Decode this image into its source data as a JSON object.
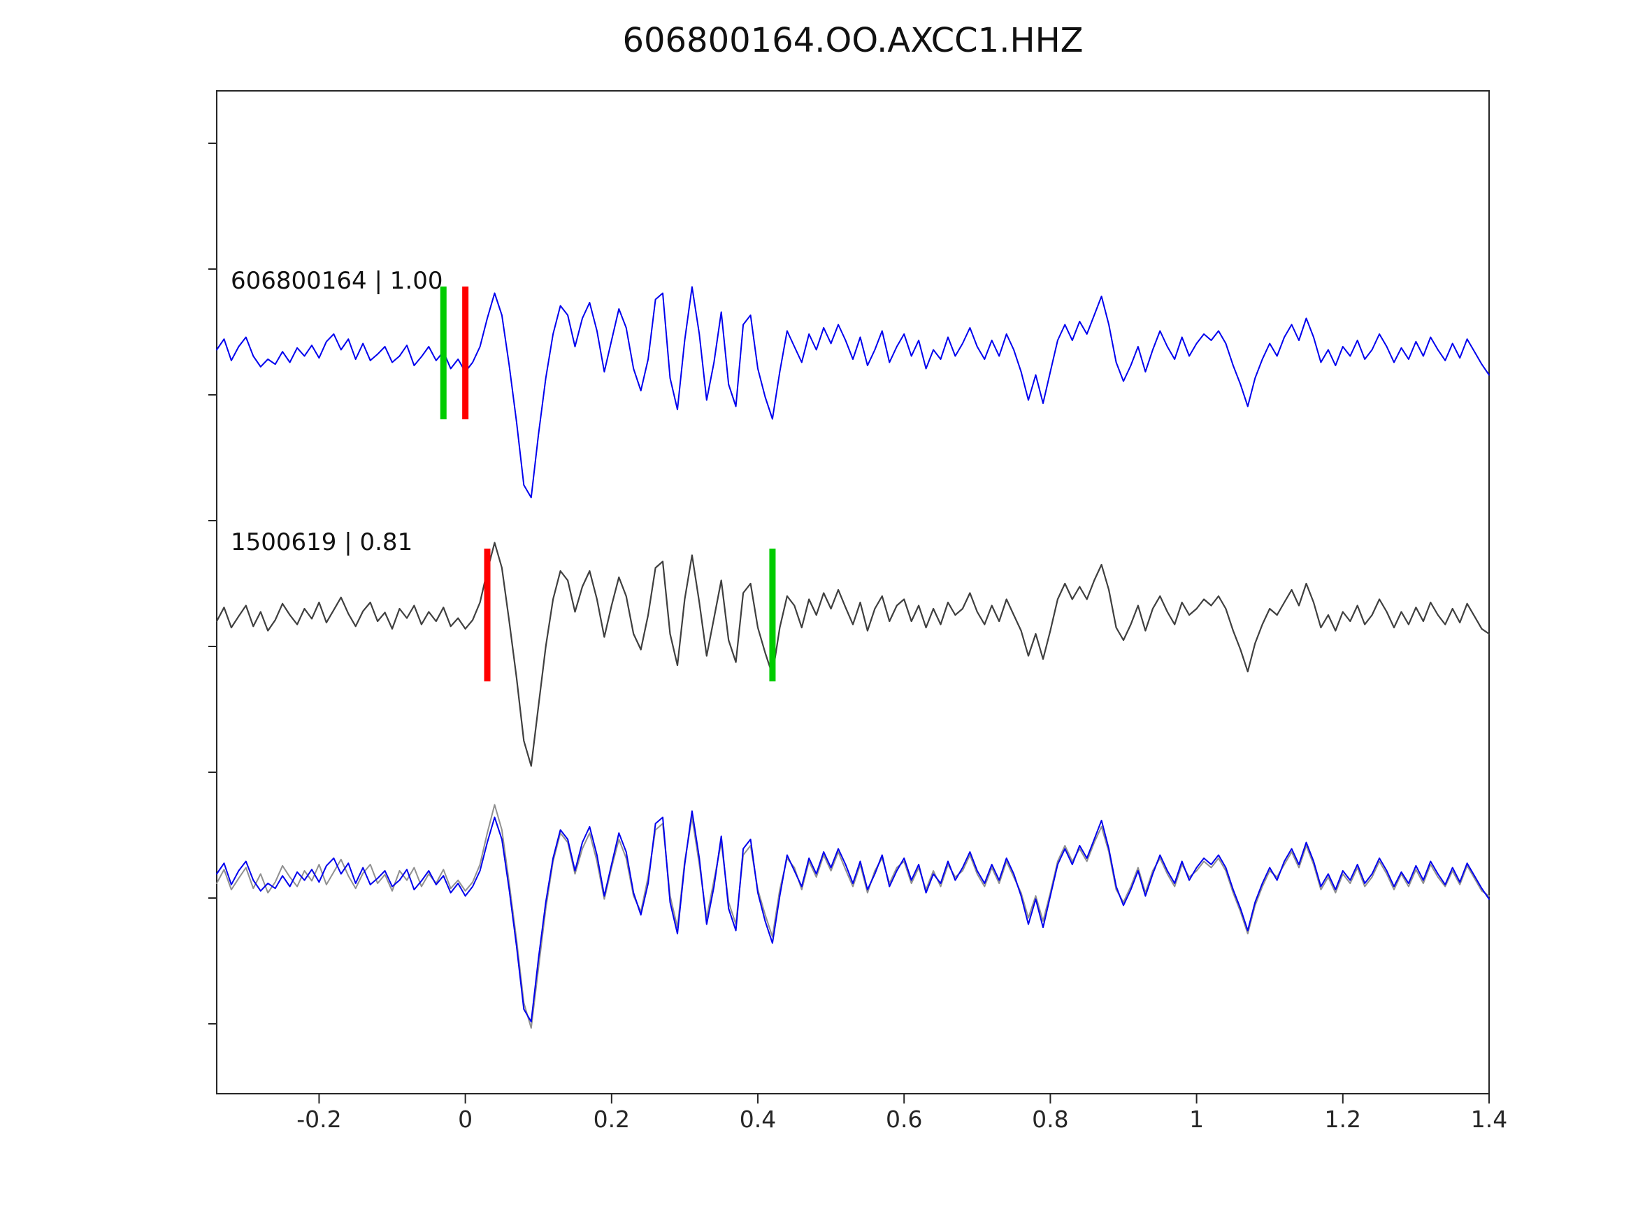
{
  "title": "606800164.OO.AXCC1.HHZ",
  "chart_data": {
    "type": "line",
    "title": "606800164.OO.AXCC1.HHZ",
    "xlabel": "",
    "ylabel": "",
    "grid": false,
    "legend": "none",
    "xlim": [
      -0.34,
      1.4
    ],
    "x_ticks": [
      -0.2,
      0,
      0.2,
      0.4,
      0.6,
      0.8,
      1,
      1.2,
      1.4
    ],
    "x_tick_labels": [
      "-0.2",
      "0",
      "0.2",
      "0.4",
      "0.6",
      "0.8",
      "1",
      "1.2",
      "1.4"
    ],
    "x_start": -0.34,
    "x_step": 0.01,
    "axis_color": "#262626",
    "traces": [
      {
        "name": "template",
        "label": "606800164 | 1.00",
        "color": "#0000ee",
        "width": 2,
        "markers": [
          {
            "x": -0.03,
            "color": "#00cc00",
            "name": "template-green-pick-marker"
          },
          {
            "x": 0.0,
            "color": "#ff0000",
            "name": "template-red-pick-marker"
          }
        ],
        "values": [
          0.05,
          0.22,
          -0.12,
          0.1,
          0.25,
          -0.05,
          -0.22,
          -0.1,
          -0.18,
          0.02,
          -0.15,
          0.08,
          -0.05,
          0.12,
          -0.08,
          0.18,
          0.3,
          0.05,
          0.22,
          -0.1,
          0.15,
          -0.12,
          -0.02,
          0.1,
          -0.15,
          -0.05,
          0.12,
          -0.2,
          -0.06,
          0.1,
          -0.12,
          0.02,
          -0.25,
          -0.1,
          -0.3,
          -0.15,
          0.1,
          0.55,
          0.95,
          0.6,
          -0.2,
          -1.1,
          -2.1,
          -2.3,
          -1.3,
          -0.4,
          0.3,
          0.75,
          0.6,
          0.1,
          0.55,
          0.8,
          0.35,
          -0.3,
          0.2,
          0.7,
          0.4,
          -0.25,
          -0.6,
          -0.1,
          0.85,
          0.95,
          -0.4,
          -0.9,
          0.2,
          1.05,
          0.3,
          -0.75,
          -0.15,
          0.65,
          -0.5,
          -0.85,
          0.45,
          0.6,
          -0.25,
          -0.7,
          -1.05,
          -0.3,
          0.35,
          0.1,
          -0.15,
          0.3,
          0.05,
          0.4,
          0.15,
          0.45,
          0.2,
          -0.1,
          0.25,
          -0.2,
          0.05,
          0.35,
          -0.15,
          0.1,
          0.3,
          -0.05,
          0.2,
          -0.25,
          0.05,
          -0.1,
          0.25,
          -0.05,
          0.15,
          0.4,
          0.1,
          -0.1,
          0.2,
          -0.05,
          0.3,
          0.05,
          -0.3,
          -0.75,
          -0.35,
          -0.8,
          -0.3,
          0.2,
          0.45,
          0.2,
          0.5,
          0.3,
          0.6,
          0.9,
          0.45,
          -0.15,
          -0.45,
          -0.2,
          0.1,
          -0.3,
          0.05,
          0.35,
          0.1,
          -0.1,
          0.25,
          -0.05,
          0.15,
          0.3,
          0.2,
          0.35,
          0.15,
          -0.2,
          -0.5,
          -0.85,
          -0.4,
          -0.1,
          0.15,
          -0.05,
          0.25,
          0.45,
          0.2,
          0.55,
          0.25,
          -0.15,
          0.05,
          -0.2,
          0.1,
          -0.05,
          0.2,
          -0.1,
          0.05,
          0.3,
          0.1,
          -0.15,
          0.08,
          -0.1,
          0.18,
          -0.05,
          0.25,
          0.05,
          -0.12,
          0.15,
          -0.08,
          0.22,
          0.02,
          -0.18,
          -0.35
        ]
      },
      {
        "name": "detection",
        "label": "1500619 | 0.81",
        "color": "#3f3f3f",
        "width": 2.2,
        "markers": [
          {
            "x": 0.03,
            "color": "#ff0000",
            "name": "detection-red-pick-marker"
          },
          {
            "x": 0.42,
            "color": "#00cc00",
            "name": "detection-green-pick-marker"
          }
        ],
        "values": [
          -0.1,
          0.12,
          -0.2,
          -0.02,
          0.15,
          -0.18,
          0.05,
          -0.25,
          -0.08,
          0.18,
          0.0,
          -0.15,
          0.1,
          -0.06,
          0.2,
          -0.12,
          0.08,
          0.28,
          0.02,
          -0.18,
          0.06,
          0.2,
          -0.1,
          0.04,
          -0.22,
          0.1,
          -0.05,
          0.15,
          -0.15,
          0.05,
          -0.1,
          0.12,
          -0.18,
          -0.05,
          -0.22,
          -0.08,
          0.2,
          0.7,
          1.15,
          0.75,
          -0.1,
          -1.0,
          -2.0,
          -2.4,
          -1.45,
          -0.5,
          0.25,
          0.7,
          0.55,
          0.05,
          0.45,
          0.7,
          0.25,
          -0.35,
          0.15,
          0.6,
          0.3,
          -0.3,
          -0.55,
          0.0,
          0.75,
          0.85,
          -0.3,
          -0.8,
          0.25,
          0.95,
          0.2,
          -0.65,
          -0.05,
          0.55,
          -0.4,
          -0.75,
          0.35,
          0.5,
          -0.2,
          -0.6,
          -0.95,
          -0.2,
          0.3,
          0.15,
          -0.2,
          0.25,
          0.0,
          0.35,
          0.1,
          0.4,
          0.12,
          -0.15,
          0.2,
          -0.25,
          0.1,
          0.3,
          -0.1,
          0.15,
          0.25,
          -0.1,
          0.15,
          -0.2,
          0.1,
          -0.15,
          0.2,
          0.0,
          0.1,
          0.35,
          0.05,
          -0.15,
          0.15,
          -0.1,
          0.25,
          0.0,
          -0.25,
          -0.65,
          -0.3,
          -0.7,
          -0.25,
          0.25,
          0.5,
          0.25,
          0.45,
          0.25,
          0.55,
          0.8,
          0.4,
          -0.2,
          -0.4,
          -0.15,
          0.15,
          -0.25,
          0.1,
          0.3,
          0.05,
          -0.15,
          0.2,
          0.0,
          0.1,
          0.25,
          0.15,
          0.3,
          0.1,
          -0.25,
          -0.55,
          -0.9,
          -0.45,
          -0.15,
          0.1,
          0.0,
          0.2,
          0.4,
          0.15,
          0.5,
          0.2,
          -0.2,
          0.0,
          -0.25,
          0.05,
          -0.1,
          0.15,
          -0.15,
          0.0,
          0.25,
          0.05,
          -0.2,
          0.05,
          -0.15,
          0.12,
          -0.1,
          0.2,
          0.0,
          -0.15,
          0.1,
          -0.12,
          0.18,
          -0.02,
          -0.22,
          -0.3
        ]
      }
    ],
    "overlay": {
      "description": "bottom row overlays detection (gray) and template (blue)",
      "series": [
        {
          "source": "detection",
          "color": "#909090"
        },
        {
          "source": "template",
          "color": "#0000ee"
        }
      ]
    }
  }
}
